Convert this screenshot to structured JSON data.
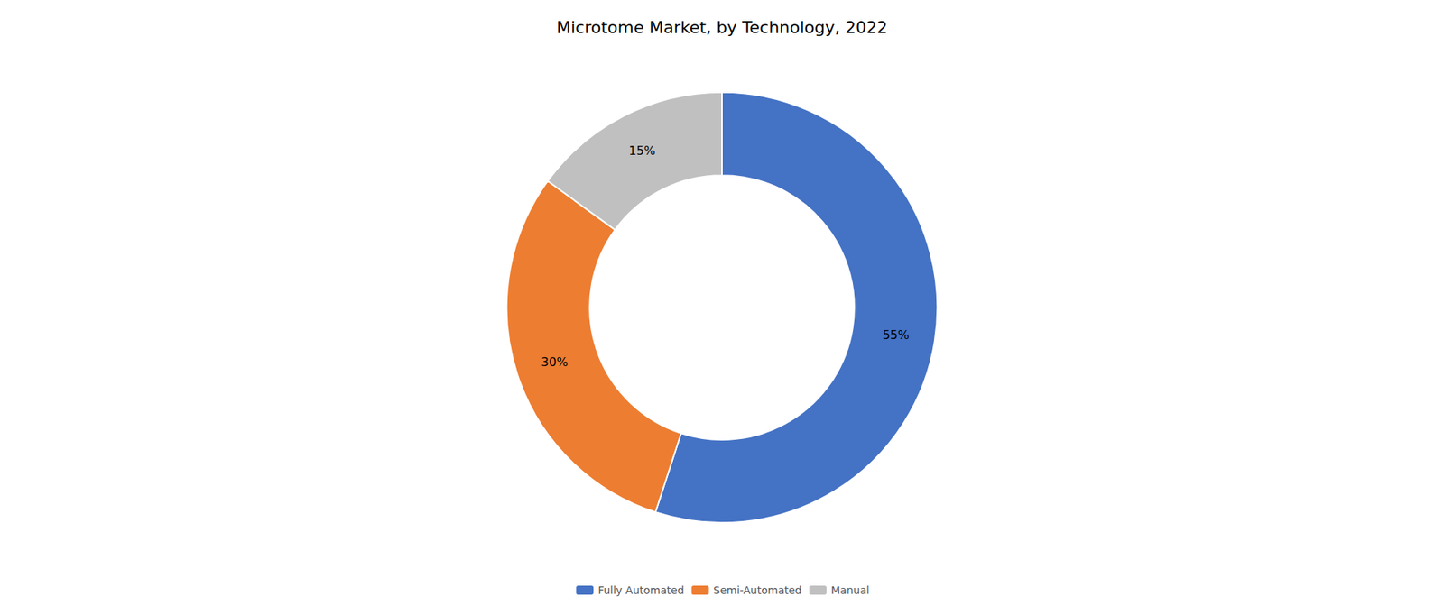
{
  "chart_data": {
    "type": "donut",
    "title": "Microtome Market, by Technology, 2022",
    "categories": [
      "Fully Automated",
      "Semi-Automated",
      "Manual"
    ],
    "values": [
      55,
      30,
      15
    ],
    "value_labels": [
      "55%",
      "30%",
      "15%"
    ],
    "colors": [
      "#4472C4",
      "#ED7D31",
      "#C0C0C0"
    ],
    "data_labels": true,
    "legend": "bottom"
  }
}
